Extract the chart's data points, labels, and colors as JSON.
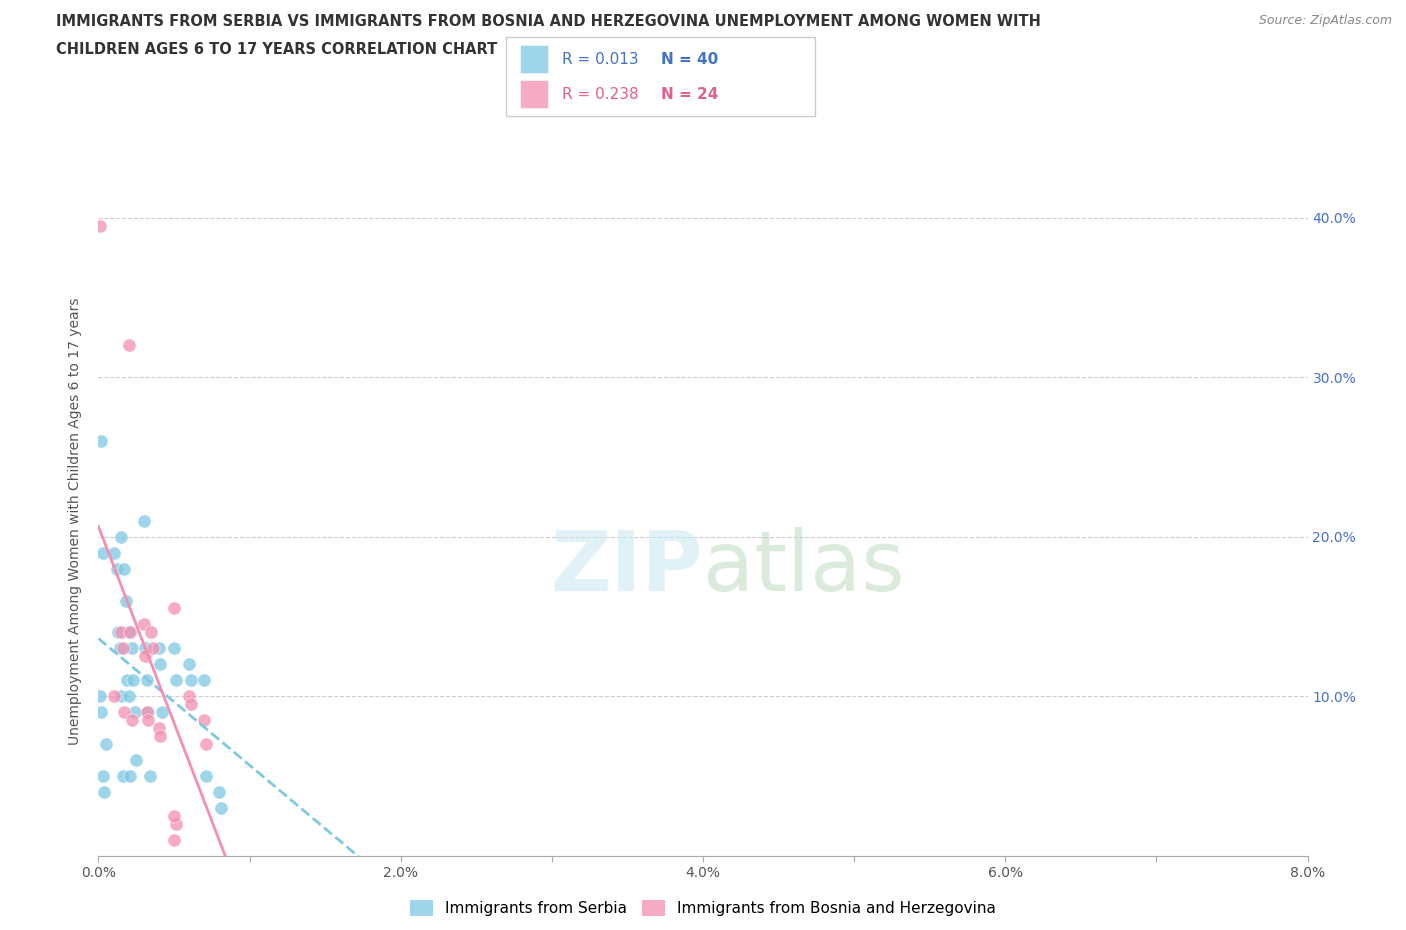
{
  "title_line1": "IMMIGRANTS FROM SERBIA VS IMMIGRANTS FROM BOSNIA AND HERZEGOVINA UNEMPLOYMENT AMONG WOMEN WITH",
  "title_line2": "CHILDREN AGES 6 TO 17 YEARS CORRELATION CHART",
  "source": "Source: ZipAtlas.com",
  "ylabel": "Unemployment Among Women with Children Ages 6 to 17 years",
  "xlim": [
    0.0,
    0.08
  ],
  "ylim": [
    0.0,
    0.42
  ],
  "x_ticks": [
    0.0,
    0.01,
    0.02,
    0.03,
    0.04,
    0.05,
    0.06,
    0.07,
    0.08
  ],
  "x_tick_labels": [
    "0.0%",
    "",
    "2.0%",
    "",
    "4.0%",
    "",
    "6.0%",
    "",
    "8.0%"
  ],
  "y_ticks": [
    0.0,
    0.1,
    0.2,
    0.3,
    0.4
  ],
  "y_tick_labels": [
    "",
    "10.0%",
    "20.0%",
    "30.0%",
    "40.0%"
  ],
  "serbia_color": "#7ec8e3",
  "bosnia_color": "#f48fb1",
  "serbia_R": 0.013,
  "serbia_N": 40,
  "bosnia_R": 0.238,
  "bosnia_N": 24,
  "serbia_x": [
    0.0002,
    0.0003,
    0.0005,
    0.001,
    0.0012,
    0.0013,
    0.0014,
    0.0015,
    0.0016,
    0.0015,
    0.0017,
    0.0018,
    0.0019,
    0.002,
    0.0021,
    0.002,
    0.0022,
    0.0023,
    0.0024,
    0.0025,
    0.003,
    0.0031,
    0.0032,
    0.0033,
    0.0034,
    0.004,
    0.0041,
    0.0042,
    0.005,
    0.0051,
    0.006,
    0.0061,
    0.007,
    0.0071,
    0.008,
    0.0081,
    0.0001,
    0.0002,
    0.0003,
    0.0004
  ],
  "serbia_y": [
    0.26,
    0.19,
    0.07,
    0.19,
    0.18,
    0.14,
    0.13,
    0.1,
    0.05,
    0.2,
    0.18,
    0.16,
    0.11,
    0.1,
    0.05,
    0.14,
    0.13,
    0.11,
    0.09,
    0.06,
    0.21,
    0.13,
    0.11,
    0.09,
    0.05,
    0.13,
    0.12,
    0.09,
    0.13,
    0.11,
    0.12,
    0.11,
    0.11,
    0.05,
    0.04,
    0.03,
    0.1,
    0.09,
    0.05,
    0.04
  ],
  "bosnia_x": [
    0.0001,
    0.001,
    0.0015,
    0.0016,
    0.0017,
    0.002,
    0.0021,
    0.0022,
    0.003,
    0.0031,
    0.0032,
    0.0033,
    0.004,
    0.0041,
    0.005,
    0.0051,
    0.006,
    0.0061,
    0.007,
    0.0071,
    0.0035,
    0.0036,
    0.005,
    0.005
  ],
  "bosnia_y": [
    0.395,
    0.1,
    0.14,
    0.13,
    0.09,
    0.32,
    0.14,
    0.085,
    0.145,
    0.125,
    0.09,
    0.085,
    0.08,
    0.075,
    0.155,
    0.02,
    0.1,
    0.095,
    0.085,
    0.07,
    0.14,
    0.13,
    0.01,
    0.025
  ]
}
